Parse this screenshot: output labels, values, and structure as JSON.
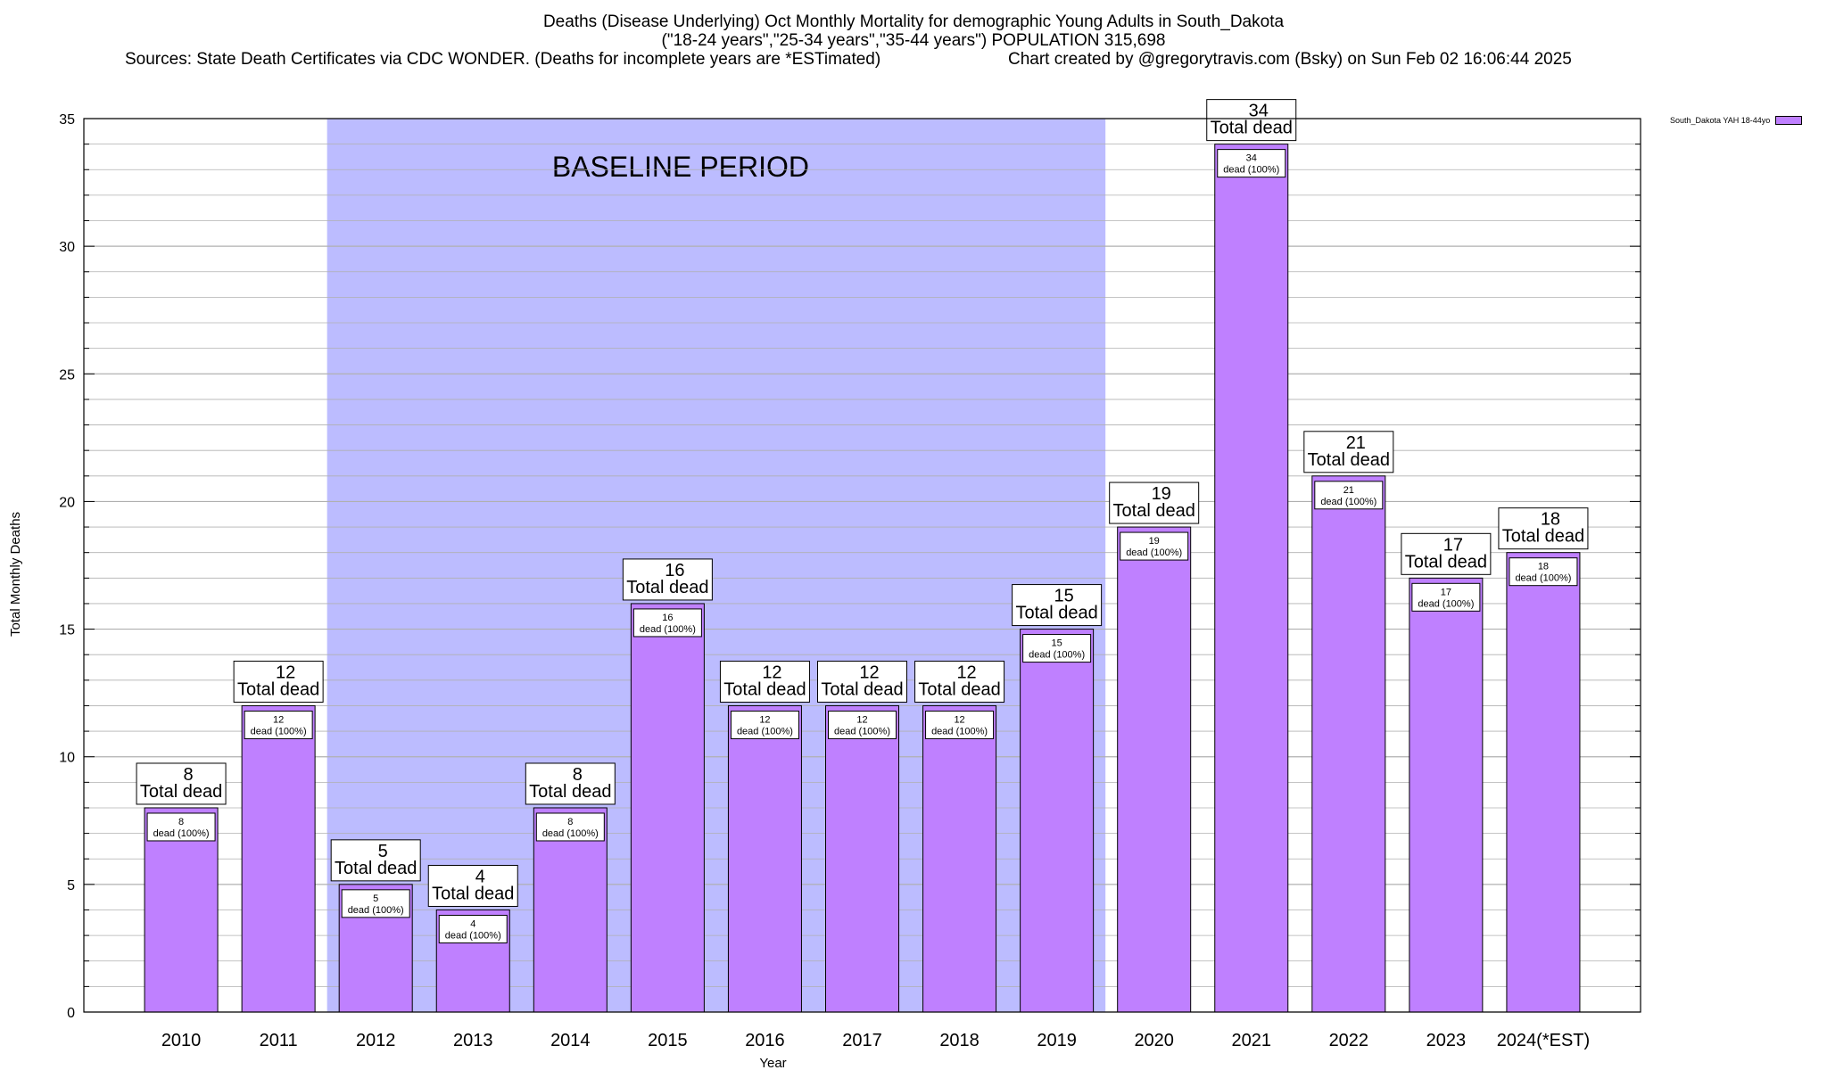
{
  "title": {
    "line1": "Deaths (Disease Underlying) Oct Monthly Mortality for demographic Young Adults in South_Dakota",
    "line2": "(\"18-24 years\",\"25-34 years\",\"35-44 years\") POPULATION 315,698",
    "sources": "Sources: State Death Certificates via CDC WONDER. (Deaths for incomplete years are *ESTimated)",
    "credit": "Chart created by @gregorytravis.com (Bsky) on Sun Feb 02 16:06:44 2025"
  },
  "legend": {
    "label": "South_Dakota YAH 18-44yo"
  },
  "colors": {
    "bar": "#bf80ff",
    "baseline": "#bcbcff",
    "grid": "#b0b0b0"
  },
  "chart_data": {
    "type": "bar",
    "categories": [
      "2010",
      "2011",
      "2012",
      "2013",
      "2014",
      "2015",
      "2016",
      "2017",
      "2018",
      "2019",
      "2020",
      "2021",
      "2022",
      "2023",
      "2024(*EST)"
    ],
    "series": [
      {
        "name": "South_Dakota YAH 18-44yo",
        "values": [
          8,
          12,
          5,
          4,
          8,
          16,
          12,
          12,
          12,
          15,
          19,
          34,
          21,
          17,
          18
        ]
      }
    ],
    "xlabel": "Year",
    "ylabel": "Total Monthly Deaths",
    "ylim": [
      0,
      35
    ],
    "yticks": [
      0,
      5,
      10,
      15,
      20,
      25,
      30,
      35
    ],
    "grid": true,
    "legend_position": "top-right",
    "baseline_period": {
      "label": "BASELINE PERIOD",
      "from": "2012",
      "to": "2019"
    },
    "total_label": "Total dead",
    "inner_label_suffix": "dead (100%)"
  }
}
